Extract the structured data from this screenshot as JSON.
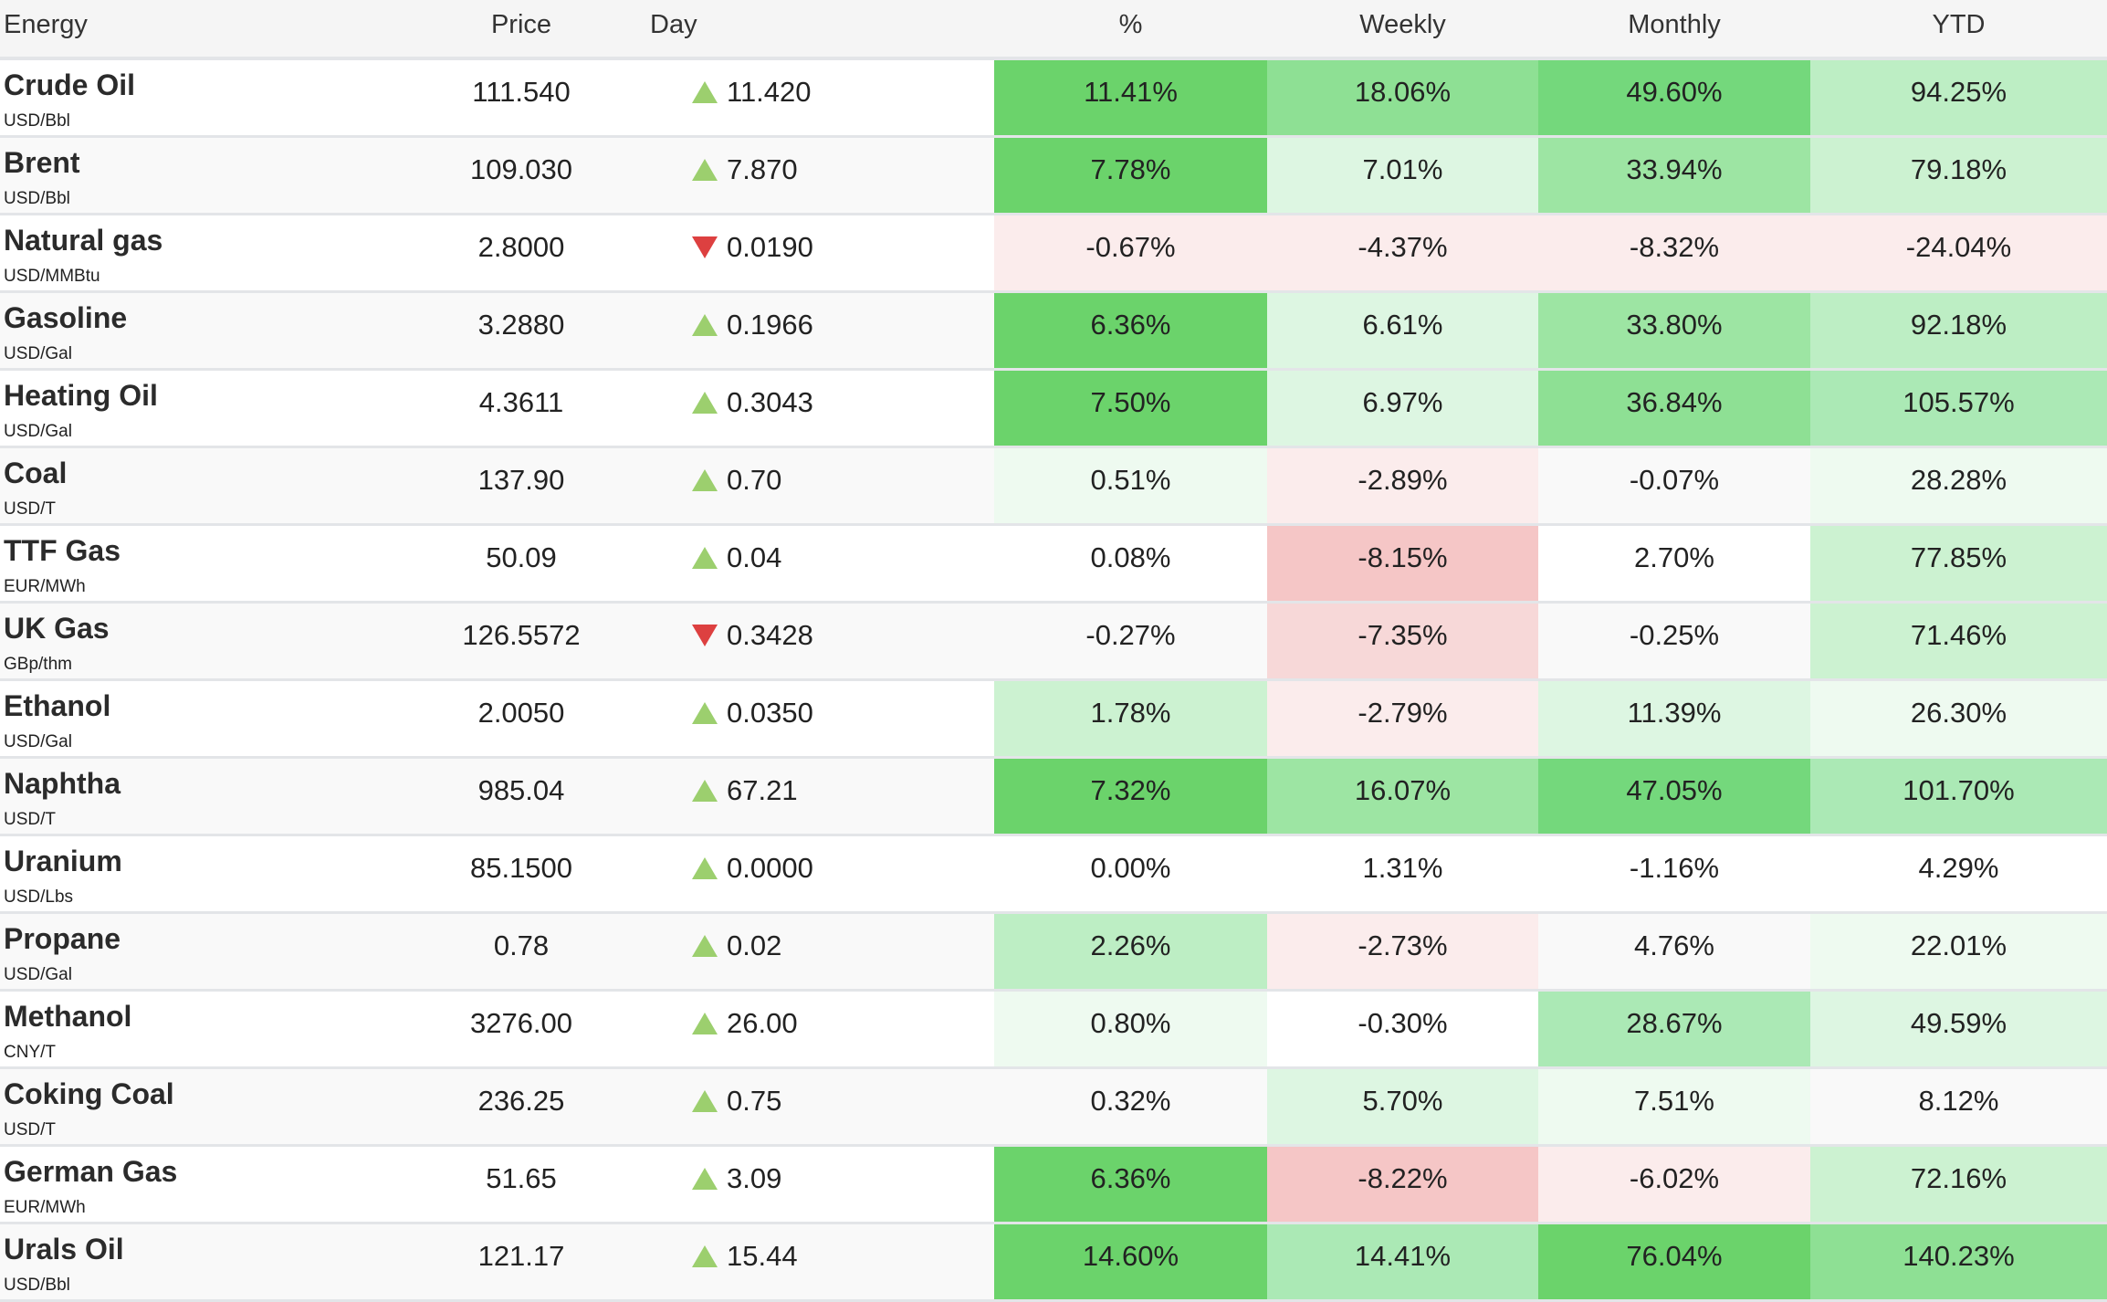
{
  "headers": {
    "name": "Energy",
    "price": "Price",
    "day": "Day",
    "pct": "%",
    "weekly": "Weekly",
    "monthly": "Monthly",
    "ytd": "YTD"
  },
  "palette": {
    "G5": "#6bd36b",
    "G4": "#74d87c",
    "G3": "#8ee094",
    "G2b": "#9de5a3",
    "G2": "#abe9b5",
    "G1b": "#bdeec4",
    "G1": "#ccf2d1",
    "G0b": "#ddf6e2",
    "G0": "#eefaf0",
    "W": "transparent",
    "R0": "#fbecec",
    "R1": "#f7d8d8",
    "R2": "#f5c6c6"
  },
  "up_color": "#9ccf6e",
  "down_color": "#dd4040",
  "rows": [
    {
      "name": "Crude Oil",
      "unit": "USD/Bbl",
      "price": "111.540",
      "dir": "up",
      "day": "11.420",
      "pct": "11.41%",
      "weekly": "18.06%",
      "monthly": "49.60%",
      "ytd": "94.25%",
      "shade": [
        "G5",
        "G3",
        "G4",
        "G1b"
      ]
    },
    {
      "name": "Brent",
      "unit": "USD/Bbl",
      "price": "109.030",
      "dir": "up",
      "day": "7.870",
      "pct": "7.78%",
      "weekly": "7.01%",
      "monthly": "33.94%",
      "ytd": "79.18%",
      "shade": [
        "G5",
        "G0b",
        "G2b",
        "G1"
      ]
    },
    {
      "name": "Natural gas",
      "unit": "USD/MMBtu",
      "price": "2.8000",
      "dir": "down",
      "day": "0.0190",
      "pct": "-0.67%",
      "weekly": "-4.37%",
      "monthly": "-8.32%",
      "ytd": "-24.04%",
      "shade": [
        "R0",
        "R0",
        "R0",
        "R0"
      ]
    },
    {
      "name": "Gasoline",
      "unit": "USD/Gal",
      "price": "3.2880",
      "dir": "up",
      "day": "0.1966",
      "pct": "6.36%",
      "weekly": "6.61%",
      "monthly": "33.80%",
      "ytd": "92.18%",
      "shade": [
        "G5",
        "G0b",
        "G2b",
        "G1b"
      ]
    },
    {
      "name": "Heating Oil",
      "unit": "USD/Gal",
      "price": "4.3611",
      "dir": "up",
      "day": "0.3043",
      "pct": "7.50%",
      "weekly": "6.97%",
      "monthly": "36.84%",
      "ytd": "105.57%",
      "shade": [
        "G5",
        "G0b",
        "G3",
        "G2"
      ]
    },
    {
      "name": "Coal",
      "unit": "USD/T",
      "price": "137.90",
      "dir": "up",
      "day": "0.70",
      "pct": "0.51%",
      "weekly": "-2.89%",
      "monthly": "-0.07%",
      "ytd": "28.28%",
      "shade": [
        "G0",
        "R0",
        "W",
        "G0"
      ]
    },
    {
      "name": "TTF Gas",
      "unit": "EUR/MWh",
      "price": "50.09",
      "dir": "up",
      "day": "0.04",
      "pct": "0.08%",
      "weekly": "-8.15%",
      "monthly": "2.70%",
      "ytd": "77.85%",
      "shade": [
        "W",
        "R2",
        "W",
        "G1"
      ]
    },
    {
      "name": "UK Gas",
      "unit": "GBp/thm",
      "price": "126.5572",
      "dir": "down",
      "day": "0.3428",
      "pct": "-0.27%",
      "weekly": "-7.35%",
      "monthly": "-0.25%",
      "ytd": "71.46%",
      "shade": [
        "W",
        "R1",
        "W",
        "G1"
      ]
    },
    {
      "name": "Ethanol",
      "unit": "USD/Gal",
      "price": "2.0050",
      "dir": "up",
      "day": "0.0350",
      "pct": "1.78%",
      "weekly": "-2.79%",
      "monthly": "11.39%",
      "ytd": "26.30%",
      "shade": [
        "G1",
        "R0",
        "G0b",
        "G0"
      ]
    },
    {
      "name": "Naphtha",
      "unit": "USD/T",
      "price": "985.04",
      "dir": "up",
      "day": "67.21",
      "pct": "7.32%",
      "weekly": "16.07%",
      "monthly": "47.05%",
      "ytd": "101.70%",
      "shade": [
        "G5",
        "G2b",
        "G4",
        "G2"
      ]
    },
    {
      "name": "Uranium",
      "unit": "USD/Lbs",
      "price": "85.1500",
      "dir": "up",
      "day": "0.0000",
      "pct": "0.00%",
      "weekly": "1.31%",
      "monthly": "-1.16%",
      "ytd": "4.29%",
      "shade": [
        "W",
        "W",
        "W",
        "W"
      ]
    },
    {
      "name": "Propane",
      "unit": "USD/Gal",
      "price": "0.78",
      "dir": "up",
      "day": "0.02",
      "pct": "2.26%",
      "weekly": "-2.73%",
      "monthly": "4.76%",
      "ytd": "22.01%",
      "shade": [
        "G1b",
        "R0",
        "W",
        "G0"
      ]
    },
    {
      "name": "Methanol",
      "unit": "CNY/T",
      "price": "3276.00",
      "dir": "up",
      "day": "26.00",
      "pct": "0.80%",
      "weekly": "-0.30%",
      "monthly": "28.67%",
      "ytd": "49.59%",
      "shade": [
        "G0",
        "W",
        "G2",
        "G0b"
      ]
    },
    {
      "name": "Coking Coal",
      "unit": "USD/T",
      "price": "236.25",
      "dir": "up",
      "day": "0.75",
      "pct": "0.32%",
      "weekly": "5.70%",
      "monthly": "7.51%",
      "ytd": "8.12%",
      "shade": [
        "W",
        "G0b",
        "G0",
        "W"
      ]
    },
    {
      "name": "German Gas",
      "unit": "EUR/MWh",
      "price": "51.65",
      "dir": "up",
      "day": "3.09",
      "pct": "6.36%",
      "weekly": "-8.22%",
      "monthly": "-6.02%",
      "ytd": "72.16%",
      "shade": [
        "G5",
        "R2",
        "R0",
        "G1"
      ]
    },
    {
      "name": "Urals Oil",
      "unit": "USD/Bbl",
      "price": "121.17",
      "dir": "up",
      "day": "15.44",
      "pct": "14.60%",
      "weekly": "14.41%",
      "monthly": "76.04%",
      "ytd": "140.23%",
      "shade": [
        "G5",
        "G2",
        "G5",
        "G3"
      ]
    }
  ]
}
